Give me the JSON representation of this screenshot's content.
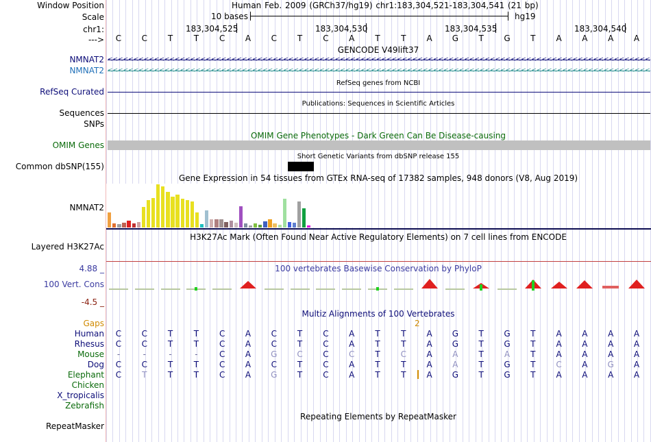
{
  "header": {
    "window_position_label": "Window Position",
    "window_position_value": "Human Feb. 2009 (GRCh37/hg19)   chr1:183,304,521-183,304,541 (21 bp)",
    "scale_label": "Scale",
    "scale_bases": "10 bases",
    "scale_assembly": "hg19",
    "chrom_label": "chr1:",
    "strand_label": "--->",
    "positions": [
      "183,304,525",
      "183,304,530",
      "183,304,535",
      "183,304,540"
    ]
  },
  "sequence": [
    "C",
    "C",
    "T",
    "T",
    "C",
    "A",
    "C",
    "T",
    "C",
    "A",
    "T",
    "T",
    "A",
    "G",
    "T",
    "G",
    "T",
    "A",
    "A",
    "A",
    "A"
  ],
  "tracks": {
    "gencode_title": "GENCODE V49lift37",
    "gencode_gene1": "NMNAT2",
    "gencode_gene2": "NMNAT2",
    "refseq_title": "RefSeq genes from NCBI",
    "refseq_label": "RefSeq Curated",
    "pubs_title": "Publications: Sequences in Scientific Articles",
    "pubs_label": "Sequences",
    "snps_label": "SNPs",
    "omim_title": "OMIM Gene Phenotypes - Dark Green Can Be Disease-causing",
    "omim_label": "OMIM Genes",
    "dbsnp_title": "Short Genetic Variants from dbSNP release 155",
    "dbsnp_label": "Common dbSNP(155)",
    "gtex_title": "Gene Expression in 54 tissues from GTEx RNA-seq of 17382 samples, 948 donors (V8, Aug 2019)",
    "gtex_label": "NMNAT2",
    "h3k27_title": "H3K27Ac Mark (Often Found Near Active Regulatory Elements) on 7 cell lines from ENCODE",
    "h3k27_label": "Layered H3K27Ac",
    "cons_title": "100 vertebrates Basewise Conservation by PhyloP",
    "cons_label": "100 Vert. Cons",
    "cons_max": "4.88 _",
    "cons_min": "-4.5 _",
    "multiz_title": "Multiz Alignments of 100 Vertebrates",
    "gaps_label": "Gaps",
    "gaps_value": "2",
    "repeat_title": "Repeating Elements by RepeatMasker",
    "repeat_label": "RepeatMasker"
  },
  "gtex_values": [
    22,
    6,
    5,
    7,
    10,
    6,
    8,
    30,
    40,
    43,
    63,
    60,
    52,
    45,
    48,
    42,
    40,
    38,
    22,
    5,
    25,
    12,
    12,
    12,
    8,
    10,
    7,
    31,
    6,
    3,
    6,
    4,
    9,
    12,
    6,
    4,
    42,
    8,
    7,
    38,
    28,
    3
  ],
  "gtex_colors": [
    "#f0a040",
    "#e07030",
    "#a0a0a0",
    "#c06050",
    "#e02020",
    "#c03030",
    "#d0a0a0",
    "#e8e020",
    "#e8e020",
    "#e8e020",
    "#e8e020",
    "#e8e020",
    "#e8e020",
    "#e8e020",
    "#e8e020",
    "#e8e020",
    "#e8e020",
    "#e8e020",
    "#e8e020",
    "#20c0c0",
    "#a0c0d0",
    "#d0b0b0",
    "#b08080",
    "#a09090",
    "#806060",
    "#b090a0",
    "#d0c0c0",
    "#a050c0",
    "#8090a0",
    "#a0a0a0",
    "#80c040",
    "#60a040",
    "#4060c0",
    "#f0a020",
    "#f0c060",
    "#b0e0a0",
    "#a0e0a0",
    "#4060e0",
    "#6080d0",
    "#a0a0a0",
    "#10a040",
    "#e000e0"
  ],
  "alignment": [
    {
      "species": "Human",
      "color": "#0c0c78",
      "bases": [
        "C",
        "C",
        "T",
        "T",
        "C",
        "A",
        "C",
        "T",
        "C",
        "A",
        "T",
        "T",
        "A",
        "G",
        "T",
        "G",
        "T",
        "A",
        "A",
        "A",
        "A"
      ]
    },
    {
      "species": "Rhesus",
      "color": "#0c0c78",
      "bases": [
        "C",
        "C",
        "T",
        "T",
        "C",
        "A",
        "C",
        "T",
        "C",
        "A",
        "T",
        "T",
        "A",
        "G",
        "T",
        "G",
        "T",
        "A",
        "A",
        "A",
        "A"
      ]
    },
    {
      "species": "Mouse",
      "color": "#0a6a0a",
      "bases": [
        "-",
        "-",
        "-",
        "-",
        "C",
        "A",
        "G",
        "C",
        "C",
        "C",
        "T",
        "C",
        "A",
        "A",
        "T",
        "A",
        "T",
        "A",
        "A",
        "A",
        "A"
      ]
    },
    {
      "species": "Dog",
      "color": "#0c0c78",
      "bases": [
        "C",
        "C",
        "T",
        "T",
        "C",
        "A",
        "C",
        "T",
        "C",
        "A",
        "T",
        "T",
        "A",
        "A",
        "T",
        "G",
        "T",
        "C",
        "A",
        "G",
        "A"
      ]
    },
    {
      "species": "Elephant",
      "color": "#0a6a0a",
      "bases": [
        "C",
        "T",
        "T",
        "T",
        "C",
        "A",
        "G",
        "T",
        "C",
        "A",
        "T",
        "T",
        "A",
        "G",
        "T",
        "G",
        "T",
        "A",
        "A",
        "A",
        "A"
      ]
    },
    {
      "species": "Chicken",
      "color": "#0a6a0a",
      "bases": []
    },
    {
      "species": "X_tropicalis",
      "color": "#0c0c78",
      "bases": []
    },
    {
      "species": "Zebrafish",
      "color": "#0a6a0a",
      "bases": []
    }
  ],
  "conservation": [
    0.1,
    0.05,
    -0.05,
    0.1,
    0.05,
    0.8,
    0.05,
    0.0,
    0.05,
    0.1,
    0.0,
    0.05,
    1.0,
    -0.05,
    0.55,
    0.0,
    0.95,
    0.7,
    0.85,
    0.3,
    0.9
  ]
}
